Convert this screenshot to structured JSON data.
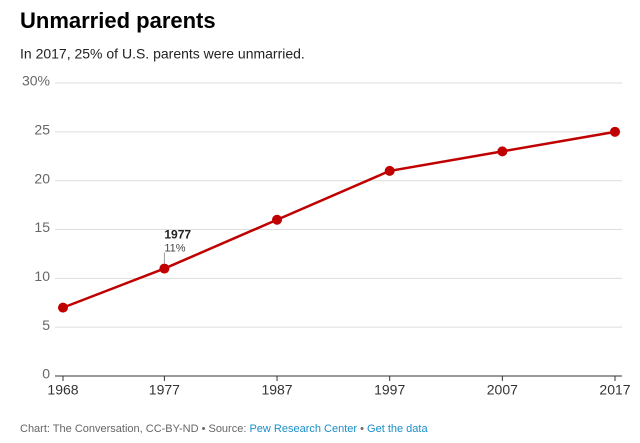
{
  "chart_data": {
    "type": "line",
    "title": "Unmarried parents",
    "subtitle": "In 2017, 25% of U.S. parents were unmarried.",
    "x": [
      1968,
      1977,
      1987,
      1997,
      2007,
      2017
    ],
    "series": [
      {
        "name": "Unmarried parents",
        "color": "#c00000",
        "values": [
          7,
          11,
          16,
          21,
          23,
          25
        ]
      }
    ],
    "xlim": [
      1968,
      2017
    ],
    "xticks": [
      1968,
      1977,
      1987,
      1997,
      2007,
      2017
    ],
    "ylim": [
      0,
      30
    ],
    "yticks": [
      0,
      5,
      10,
      15,
      20,
      {
        "value": 30,
        "label": "30%"
      },
      25
    ],
    "grid": true,
    "annotation": {
      "x": 1977,
      "y": 11,
      "label": "11%"
    },
    "source": {
      "prefix": "Chart: The Conversation, CC-BY-ND • Source:",
      "link": "Pew Research Center",
      "separator": "•",
      "data_link": "Get the data"
    }
  }
}
